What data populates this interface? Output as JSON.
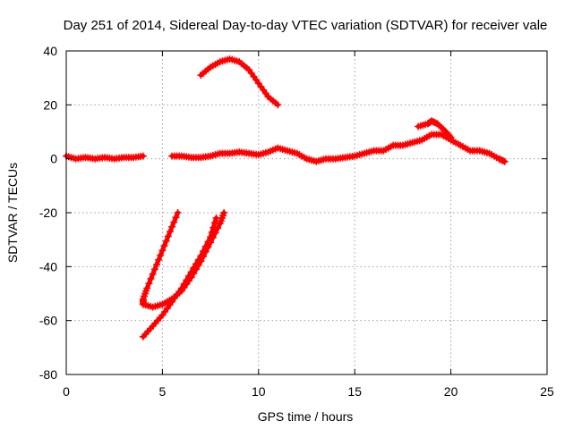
{
  "chart_data": {
    "type": "scatter",
    "title": "Day 251 of 2014, Sidereal Day-to-day VTEC variation (SDTVAR) for receiver vale",
    "xlabel": "GPS time / hours",
    "ylabel": "SDTVAR / TECUs",
    "xlim": [
      0,
      25
    ],
    "ylim": [
      -80,
      40
    ],
    "xticks": [
      0,
      5,
      10,
      15,
      20,
      25
    ],
    "yticks": [
      -80,
      -60,
      -40,
      -20,
      0,
      20,
      40
    ],
    "grid": true,
    "legend": "none",
    "marker": "cross",
    "series": [
      {
        "name": "near-zero early arc",
        "color": "#ff0000",
        "points": [
          [
            0,
            1
          ],
          [
            0.5,
            0
          ],
          [
            1,
            0.5
          ],
          [
            1.5,
            0
          ],
          [
            2,
            0.5
          ],
          [
            2.5,
            0
          ],
          [
            3,
            0.5
          ],
          [
            3.5,
            0.5
          ],
          [
            4,
            1
          ]
        ]
      },
      {
        "name": "near-zero main arc",
        "color": "#ff0000",
        "points": [
          [
            5.5,
            1
          ],
          [
            6,
            1
          ],
          [
            6.5,
            0.5
          ],
          [
            7,
            0.5
          ],
          [
            7.5,
            1
          ],
          [
            8,
            2
          ],
          [
            8.5,
            2
          ],
          [
            9,
            2.5
          ],
          [
            9.5,
            2
          ],
          [
            10,
            1.5
          ],
          [
            10.5,
            2.5
          ],
          [
            11,
            4
          ],
          [
            11.5,
            3
          ],
          [
            12,
            2
          ],
          [
            12.5,
            0
          ],
          [
            13,
            -1
          ],
          [
            13.5,
            0
          ],
          [
            14,
            0
          ],
          [
            14.5,
            0.5
          ],
          [
            15,
            1
          ],
          [
            15.5,
            2
          ],
          [
            16,
            3
          ],
          [
            16.5,
            3
          ],
          [
            17,
            5
          ],
          [
            17.5,
            5
          ],
          [
            18,
            6
          ],
          [
            18.5,
            7
          ],
          [
            19,
            9
          ],
          [
            19.5,
            9
          ],
          [
            20,
            7
          ],
          [
            20.5,
            5
          ],
          [
            21,
            3
          ],
          [
            21.5,
            3
          ],
          [
            22,
            2
          ],
          [
            22.5,
            0
          ],
          [
            22.8,
            -1
          ]
        ]
      },
      {
        "name": "spike near hour 19",
        "color": "#ff0000",
        "points": [
          [
            18.3,
            12
          ],
          [
            18.8,
            13
          ],
          [
            19,
            14
          ],
          [
            19.3,
            13
          ],
          [
            19.6,
            11
          ],
          [
            20,
            8
          ]
        ]
      },
      {
        "name": "high arc",
        "color": "#ff0000",
        "points": [
          [
            7,
            31
          ],
          [
            7.5,
            34
          ],
          [
            8,
            36
          ],
          [
            8.5,
            37
          ],
          [
            9,
            36
          ],
          [
            9.5,
            33
          ],
          [
            10,
            28
          ],
          [
            10.5,
            23
          ],
          [
            11,
            20
          ]
        ]
      },
      {
        "name": "descending arc A",
        "color": "#ff0000",
        "points": [
          [
            5.8,
            -20
          ],
          [
            5.4,
            -27
          ],
          [
            5,
            -34
          ],
          [
            4.6,
            -41
          ],
          [
            4.2,
            -48
          ],
          [
            4,
            -52
          ],
          [
            4,
            -54
          ],
          [
            4.5,
            -55
          ],
          [
            5,
            -54
          ],
          [
            5.5,
            -52
          ],
          [
            6,
            -49
          ],
          [
            6.5,
            -44
          ],
          [
            7,
            -38
          ],
          [
            7.5,
            -31
          ],
          [
            8,
            -24
          ],
          [
            8.2,
            -20
          ]
        ]
      },
      {
        "name": "descending arc B",
        "color": "#ff0000",
        "points": [
          [
            4,
            -66
          ],
          [
            4.5,
            -62
          ],
          [
            5,
            -58
          ],
          [
            5.5,
            -53
          ],
          [
            6,
            -48
          ],
          [
            6.5,
            -42
          ],
          [
            7,
            -36
          ],
          [
            7.5,
            -29
          ],
          [
            7.8,
            -22
          ]
        ]
      }
    ]
  }
}
